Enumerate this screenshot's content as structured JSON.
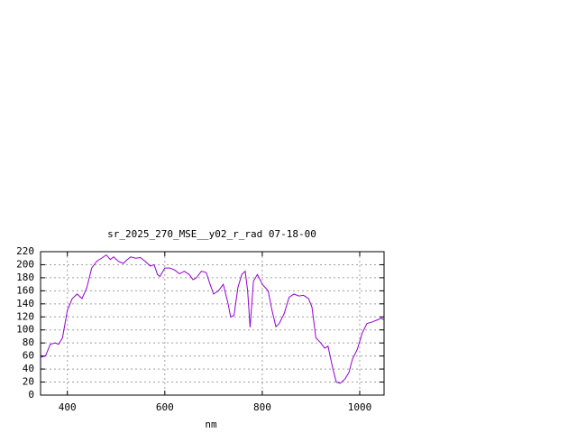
{
  "chart_data": {
    "type": "line",
    "title": "sr_2025_270_MSE__y02_r_rad 07-18-00",
    "x_label": "nm",
    "xlim": [
      345,
      1050
    ],
    "ylim": [
      0,
      220
    ],
    "xticks": [
      400,
      600,
      800,
      1000
    ],
    "yticks": [
      0,
      20,
      40,
      60,
      80,
      100,
      120,
      140,
      160,
      180,
      200,
      220
    ],
    "grid": true,
    "series": [
      {
        "color": "#9400d3",
        "x": [
          345,
          355,
          365,
          375,
          382,
          390,
          400,
          410,
          420,
          430,
          440,
          450,
          460,
          470,
          480,
          488,
          495,
          505,
          515,
          520,
          530,
          540,
          550,
          560,
          570,
          578,
          585,
          590,
          600,
          610,
          620,
          630,
          640,
          650,
          658,
          665,
          675,
          685,
          692,
          700,
          710,
          720,
          730,
          735,
          742,
          750,
          758,
          765,
          770,
          775,
          782,
          790,
          800,
          812,
          820,
          828,
          835,
          845,
          855,
          865,
          875,
          885,
          895,
          902,
          910,
          920,
          928,
          935,
          945,
          952,
          960,
          970,
          978,
          985,
          995,
          1005,
          1015,
          1025,
          1035,
          1045,
          1050
        ],
        "values": [
          58,
          60,
          78,
          80,
          78,
          88,
          130,
          148,
          155,
          148,
          165,
          195,
          205,
          210,
          215,
          208,
          212,
          205,
          202,
          206,
          212,
          210,
          211,
          205,
          198,
          200,
          185,
          182,
          195,
          195,
          192,
          186,
          190,
          185,
          177,
          180,
          190,
          188,
          172,
          155,
          160,
          170,
          140,
          120,
          122,
          165,
          185,
          190,
          160,
          104,
          175,
          185,
          170,
          160,
          130,
          105,
          110,
          125,
          150,
          155,
          152,
          153,
          148,
          135,
          88,
          80,
          72,
          75,
          40,
          20,
          18,
          25,
          35,
          55,
          70,
          95,
          110,
          112,
          115,
          118,
          115
        ]
      }
    ]
  }
}
